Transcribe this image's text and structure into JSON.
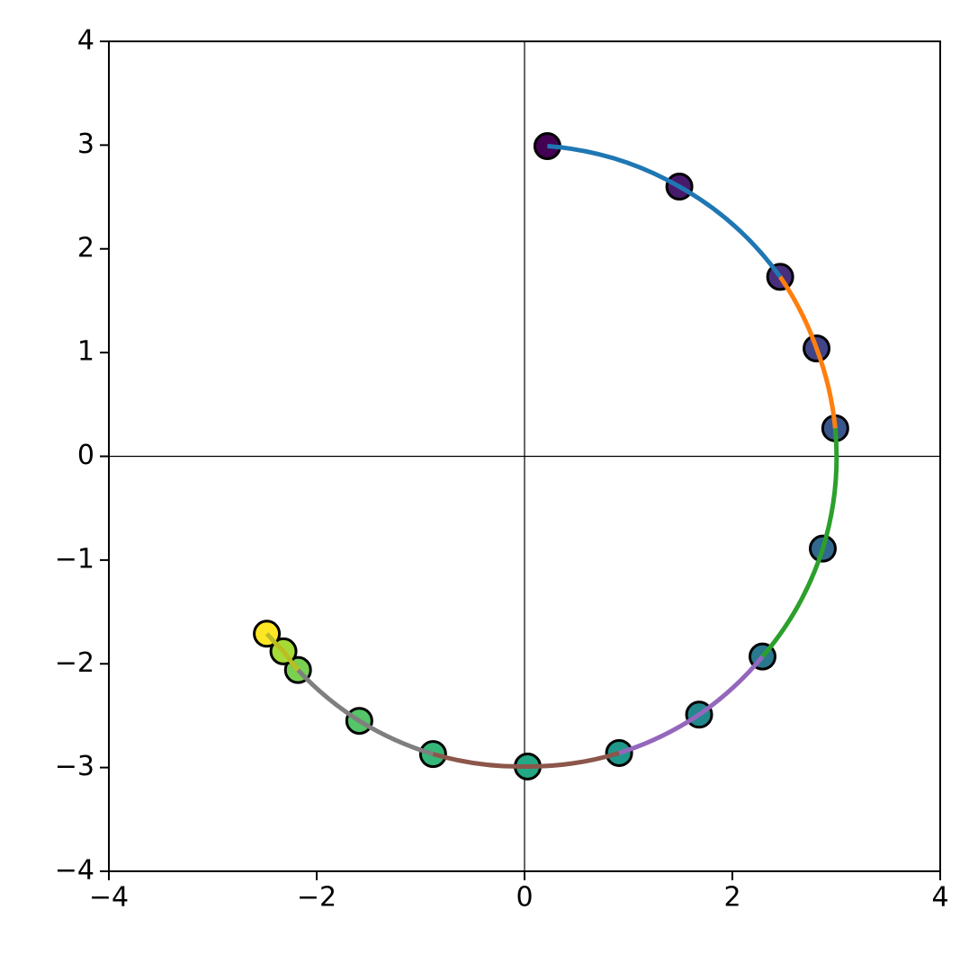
{
  "chart_data": {
    "type": "scatter",
    "xlim": [
      -4,
      4
    ],
    "ylim": [
      -4,
      4
    ],
    "xticks": [
      {
        "value": -4,
        "label": "−4"
      },
      {
        "value": -2,
        "label": "−2"
      },
      0,
      2,
      4
    ],
    "yticks": [
      {
        "value": -4,
        "label": "−4"
      },
      {
        "value": -3,
        "label": "−3"
      },
      {
        "value": -2,
        "label": "−2"
      },
      {
        "value": -1,
        "label": "−1"
      },
      0,
      1,
      2,
      3,
      4
    ],
    "zero_lines": true,
    "points": {
      "x": [
        0.22,
        1.49,
        2.46,
        2.81,
        2.99,
        2.87,
        2.29,
        1.68,
        0.91,
        0.03,
        -0.88,
        -1.59,
        -2.18,
        -2.32,
        -2.48
      ],
      "y": [
        2.99,
        2.6,
        1.73,
        1.04,
        0.27,
        -0.89,
        -1.93,
        -2.49,
        -2.86,
        -2.99,
        -2.87,
        -2.55,
        -2.06,
        -1.88,
        -1.71
      ],
      "colors": [
        "#440154",
        "#481a6c",
        "#472f7d",
        "#414487",
        "#39568c",
        "#31688e",
        "#2a788e",
        "#23888e",
        "#1f988b",
        "#22a884",
        "#35b779",
        "#54c568",
        "#7ad151",
        "#a5db36",
        "#fde725"
      ]
    },
    "lines": [
      {
        "color": "#1f77b4",
        "x": [
          0.22,
          1.49,
          2.46
        ],
        "y": [
          2.99,
          2.6,
          1.73
        ]
      },
      {
        "color": "#ff7f0e",
        "x": [
          2.46,
          2.81,
          2.99
        ],
        "y": [
          1.73,
          1.04,
          0.27
        ]
      },
      {
        "color": "#2ca02c",
        "x": [
          2.99,
          2.87,
          2.29
        ],
        "y": [
          0.27,
          -0.89,
          -1.93
        ]
      },
      {
        "color": "#9467bd",
        "x": [
          2.29,
          1.68,
          0.91
        ],
        "y": [
          -1.93,
          -2.49,
          -2.86
        ]
      },
      {
        "color": "#8c564b",
        "x": [
          0.91,
          0.03,
          -0.88
        ],
        "y": [
          -2.86,
          -2.99,
          -2.87
        ]
      },
      {
        "color": "#7f7f7f",
        "x": [
          -0.88,
          -1.59,
          -2.18
        ],
        "y": [
          -2.87,
          -2.55,
          -2.06
        ]
      },
      {
        "color": "#bcbd22",
        "x": [
          -2.18,
          -2.32,
          -2.48
        ],
        "y": [
          -2.06,
          -1.88,
          -1.71
        ]
      }
    ]
  }
}
